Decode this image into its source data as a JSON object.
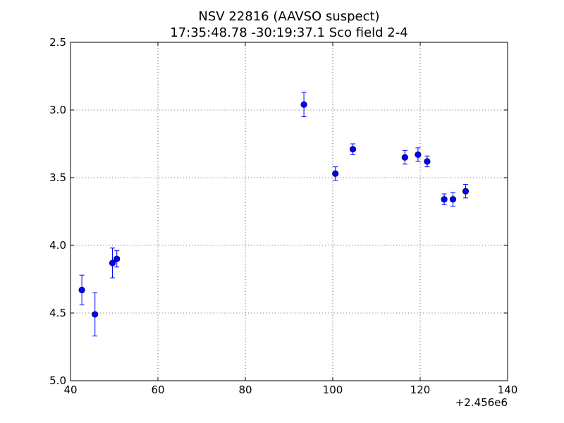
{
  "chart_data": {
    "type": "scatter",
    "title": "NSV 22816 (AAVSO suspect)",
    "subtitle": "17:35:48.78 -30:19:37.1 Sco field 2-4",
    "xlabel": "",
    "ylabel": "",
    "x_offset_label": "+2.456e6",
    "xlim": [
      40,
      140
    ],
    "ylim": [
      2.5,
      5.0
    ],
    "y_inverted": true,
    "grid": true,
    "x_ticks": [
      40,
      60,
      80,
      100,
      120,
      140
    ],
    "x_tick_labels": [
      "40",
      "60",
      "80",
      "100",
      "120",
      "140"
    ],
    "y_ticks": [
      2.5,
      3.0,
      3.5,
      4.0,
      4.5,
      5.0
    ],
    "y_tick_labels": [
      "2.5",
      "3.0",
      "3.5",
      "4.0",
      "4.5",
      "5.0"
    ],
    "marker_color": "#0000ff",
    "points": [
      {
        "x": 42.6,
        "y": 4.33,
        "err": 0.11
      },
      {
        "x": 45.6,
        "y": 4.51,
        "err": 0.16
      },
      {
        "x": 49.6,
        "y": 4.13,
        "err": 0.11
      },
      {
        "x": 50.6,
        "y": 4.1,
        "err": 0.06
      },
      {
        "x": 93.4,
        "y": 2.96,
        "err": 0.09
      },
      {
        "x": 100.6,
        "y": 3.47,
        "err": 0.05
      },
      {
        "x": 104.6,
        "y": 3.29,
        "err": 0.04
      },
      {
        "x": 116.5,
        "y": 3.35,
        "err": 0.05
      },
      {
        "x": 119.5,
        "y": 3.33,
        "err": 0.05
      },
      {
        "x": 121.6,
        "y": 3.38,
        "err": 0.04
      },
      {
        "x": 125.5,
        "y": 3.66,
        "err": 0.04
      },
      {
        "x": 127.5,
        "y": 3.66,
        "err": 0.05
      },
      {
        "x": 130.4,
        "y": 3.6,
        "err": 0.05
      }
    ]
  }
}
